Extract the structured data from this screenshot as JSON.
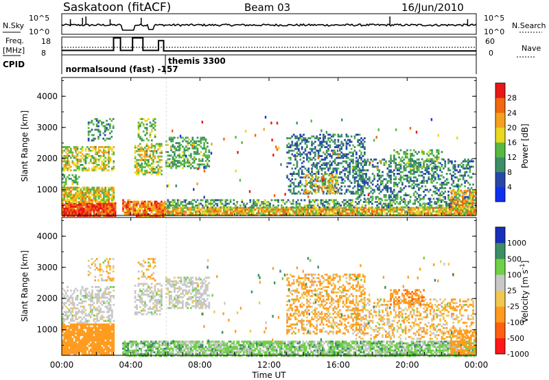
{
  "header": {
    "station": "Saskatoon (fitACF)",
    "beam": "Beam 03",
    "date": "16/Jun/2010"
  },
  "summary": {
    "nsky_label": "N.Sky",
    "nsky_ticks": [
      "10^5",
      "10^0"
    ],
    "nsearch_label": "N.Search",
    "nsearch_ticks": [
      "10^5",
      "10^0"
    ],
    "freq_label_1": "Freq.",
    "freq_label_2": "[MHz]",
    "freq_ticks": [
      "18",
      "8"
    ],
    "nave_label": "Nave",
    "nave_ticks": [
      "60",
      "0"
    ],
    "cpid_label": "CPID",
    "cpid_entries": [
      {
        "name": "normalsound (fast)",
        "id": "-157",
        "start": 0.1
      },
      {
        "name": "themis",
        "id": "3300",
        "start": 6.0
      }
    ],
    "freq_steps": [
      {
        "from": 0.0,
        "to": 3.0,
        "mhz": 10.5
      },
      {
        "from": 3.0,
        "to": 3.4,
        "mhz": 17.5
      },
      {
        "from": 3.4,
        "to": 4.1,
        "mhz": 10.5
      },
      {
        "from": 4.1,
        "to": 4.7,
        "mhz": 17.5
      },
      {
        "from": 4.7,
        "to": 5.6,
        "mhz": 10.5
      },
      {
        "from": 5.6,
        "to": 5.9,
        "mhz": 16.0
      },
      {
        "from": 5.9,
        "to": 24.0,
        "mhz": 10.2
      }
    ]
  },
  "time_axis": {
    "label": "Time UT",
    "ticks": [
      "00:00",
      "04:00",
      "08:00",
      "12:00",
      "16:00",
      "20:00",
      "00:00"
    ]
  },
  "colors": {
    "power": [
      "#1030f0",
      "#2848a8",
      "#3c8e64",
      "#58b844",
      "#e8d820",
      "#f4a020",
      "#f06810",
      "#e81818"
    ],
    "velocity": [
      "#ff1818",
      "#ff6010",
      "#ff9c20",
      "#f0c850",
      "#c8c8c8",
      "#70d048",
      "#3c8e64",
      "#1830b8"
    ]
  },
  "chart_data": [
    {
      "type": "heatmap",
      "title": "Power",
      "ylabel": "Slant Range [km]",
      "xlabel": "Time UT",
      "x_range_hours": [
        0,
        24
      ],
      "ylim": [
        180,
        4600
      ],
      "y_ticks": [
        "4000",
        "3000",
        "2000",
        "1000"
      ],
      "colorbar_label": "Power [dB]",
      "colorbar_ticks": [
        "28",
        "24",
        "20",
        "16",
        "12",
        "8",
        "4"
      ],
      "colorbar_range": [
        0,
        30
      ],
      "regions": [
        {
          "t0": 0.0,
          "t1": 3.1,
          "r0": 180,
          "r1": 600,
          "v0": 22,
          "v1": 30,
          "d": 0.95
        },
        {
          "t0": 0.0,
          "t1": 3.0,
          "r0": 600,
          "r1": 1100,
          "v0": 12,
          "v1": 24,
          "d": 0.85
        },
        {
          "t0": 0.0,
          "t1": 1.0,
          "r0": 1100,
          "r1": 1500,
          "v0": 8,
          "v1": 16,
          "d": 0.5
        },
        {
          "t0": 0.0,
          "t1": 3.0,
          "r0": 1600,
          "r1": 2400,
          "v0": 10,
          "v1": 22,
          "d": 0.55
        },
        {
          "t0": 1.5,
          "t1": 3.0,
          "r0": 2600,
          "r1": 3300,
          "v0": 6,
          "v1": 14,
          "d": 0.35
        },
        {
          "t0": 3.5,
          "t1": 4.0,
          "r0": 200,
          "r1": 700,
          "v0": 16,
          "v1": 28,
          "d": 0.8
        },
        {
          "t0": 4.1,
          "t1": 6.0,
          "r0": 180,
          "r1": 650,
          "v0": 16,
          "v1": 28,
          "d": 0.9
        },
        {
          "t0": 4.2,
          "t1": 5.8,
          "r0": 1500,
          "r1": 2500,
          "v0": 10,
          "v1": 22,
          "d": 0.55
        },
        {
          "t0": 4.4,
          "t1": 5.4,
          "r0": 2600,
          "r1": 3300,
          "v0": 8,
          "v1": 18,
          "d": 0.35
        },
        {
          "t0": 6.0,
          "t1": 24.0,
          "r0": 180,
          "r1": 450,
          "v0": 12,
          "v1": 26,
          "d": 0.85
        },
        {
          "t0": 6.0,
          "t1": 24.0,
          "r0": 450,
          "r1": 700,
          "v0": 6,
          "v1": 16,
          "d": 0.45
        },
        {
          "t0": 6.0,
          "t1": 8.5,
          "r0": 1700,
          "r1": 2700,
          "v0": 8,
          "v1": 16,
          "d": 0.45
        },
        {
          "t0": 13.0,
          "t1": 17.5,
          "r0": 900,
          "r1": 2800,
          "v0": 4,
          "v1": 12,
          "d": 0.4
        },
        {
          "t0": 14.0,
          "t1": 16.0,
          "r0": 900,
          "r1": 1500,
          "v0": 10,
          "v1": 24,
          "d": 0.4
        },
        {
          "t0": 17.0,
          "t1": 23.8,
          "r0": 700,
          "r1": 2000,
          "v0": 4,
          "v1": 14,
          "d": 0.35
        },
        {
          "t0": 19.0,
          "t1": 22.0,
          "r0": 1700,
          "r1": 2300,
          "v0": 8,
          "v1": 16,
          "d": 0.4
        },
        {
          "t0": 22.5,
          "t1": 24.0,
          "r0": 200,
          "r1": 1000,
          "v0": 12,
          "v1": 26,
          "d": 0.6
        }
      ]
    },
    {
      "type": "heatmap",
      "title": "Velocity",
      "ylabel": "Slant Range [km]",
      "xlabel": "Time UT",
      "x_range_hours": [
        0,
        24
      ],
      "ylim": [
        180,
        4600
      ],
      "y_ticks": [
        "4000",
        "3000",
        "2000",
        "1000"
      ],
      "colorbar_label": "Velocity [m s^-1]",
      "colorbar_ticks": [
        "1000",
        "500",
        "100",
        "25",
        "-25",
        "-100",
        "-500",
        "-1000"
      ],
      "colorbar_range": [
        -1200,
        1200
      ],
      "regions": [
        {
          "t0": 0.0,
          "t1": 3.0,
          "r0": 180,
          "r1": 1200,
          "v0": -500,
          "v1": -100,
          "d": 0.9
        },
        {
          "t0": 0.0,
          "t1": 3.0,
          "r0": 1200,
          "r1": 2400,
          "v0": -30,
          "v1": 30,
          "d": 0.45
        },
        {
          "t0": 1.5,
          "t1": 3.0,
          "r0": 2600,
          "r1": 3300,
          "v0": -150,
          "v1": 30,
          "d": 0.3
        },
        {
          "t0": 3.5,
          "t1": 6.0,
          "r0": 180,
          "r1": 650,
          "v0": -20,
          "v1": 150,
          "d": 0.75
        },
        {
          "t0": 4.2,
          "t1": 5.8,
          "r0": 1500,
          "r1": 2500,
          "v0": -30,
          "v1": 30,
          "d": 0.45
        },
        {
          "t0": 4.4,
          "t1": 5.4,
          "r0": 2600,
          "r1": 3300,
          "v0": -200,
          "v1": 30,
          "d": 0.3
        },
        {
          "t0": 6.0,
          "t1": 24.0,
          "r0": 180,
          "r1": 650,
          "v0": -20,
          "v1": 120,
          "d": 0.8
        },
        {
          "t0": 6.0,
          "t1": 8.5,
          "r0": 1700,
          "r1": 2700,
          "v0": -30,
          "v1": 30,
          "d": 0.5
        },
        {
          "t0": 13.0,
          "t1": 17.5,
          "r0": 900,
          "r1": 2800,
          "v0": -300,
          "v1": 30,
          "d": 0.4
        },
        {
          "t0": 17.0,
          "t1": 23.8,
          "r0": 700,
          "r1": 2000,
          "v0": -200,
          "v1": 30,
          "d": 0.35
        },
        {
          "t0": 19.0,
          "t1": 21.0,
          "r0": 1800,
          "r1": 2300,
          "v0": -600,
          "v1": -200,
          "d": 0.55
        },
        {
          "t0": 22.5,
          "t1": 24.0,
          "r0": 200,
          "r1": 1000,
          "v0": -500,
          "v1": -100,
          "d": 0.6
        }
      ]
    }
  ]
}
